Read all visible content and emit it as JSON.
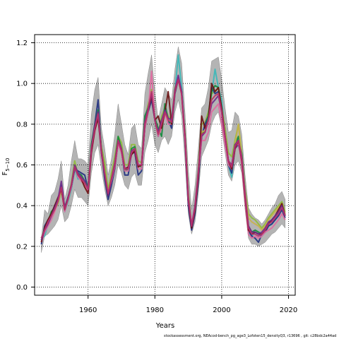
{
  "chart_data": {
    "type": "line",
    "xlabel": "Years",
    "ylabel": "F",
    "ylabel_sub": "5−10",
    "xlim": [
      1944,
      2022
    ],
    "ylim": [
      -0.04,
      1.24
    ],
    "x_ticks": [
      1960,
      1980,
      2000,
      2020
    ],
    "y_ticks": [
      0.0,
      0.2,
      0.4,
      0.6,
      0.8,
      1.0,
      1.2
    ],
    "grid": true,
    "grid_style": "dotted",
    "x": [
      1946,
      1947,
      1948,
      1949,
      1950,
      1951,
      1952,
      1953,
      1954,
      1955,
      1956,
      1957,
      1958,
      1959,
      1960,
      1961,
      1962,
      1963,
      1964,
      1965,
      1966,
      1967,
      1968,
      1969,
      1970,
      1971,
      1972,
      1973,
      1974,
      1975,
      1976,
      1977,
      1978,
      1979,
      1980,
      1981,
      1982,
      1983,
      1984,
      1985,
      1986,
      1987,
      1988,
      1989,
      1990,
      1991,
      1992,
      1993,
      1994,
      1995,
      1996,
      1997,
      1998,
      1999,
      2000,
      2001,
      2002,
      2003,
      2004,
      2005,
      2006,
      2007,
      2008,
      2009,
      2010,
      2011,
      2012,
      2013,
      2014,
      2015,
      2016,
      2017,
      2018,
      2019
    ],
    "band": {
      "color": "#b4b4b4",
      "upper": [
        0.24,
        0.38,
        0.36,
        0.45,
        0.47,
        0.53,
        0.62,
        0.43,
        0.5,
        0.62,
        0.72,
        0.63,
        0.63,
        0.62,
        0.6,
        0.85,
        0.97,
        1.03,
        0.78,
        0.68,
        0.55,
        0.63,
        0.75,
        0.9,
        0.8,
        0.7,
        0.65,
        0.78,
        0.8,
        0.7,
        0.68,
        0.95,
        1.05,
        1.14,
        0.96,
        0.82,
        0.9,
        0.98,
        0.95,
        0.92,
        1.07,
        1.18,
        1.1,
        0.86,
        0.58,
        0.38,
        0.5,
        0.68,
        0.88,
        0.9,
        0.98,
        1.11,
        1.12,
        1.13,
        1.02,
        0.88,
        0.76,
        0.77,
        0.86,
        0.84,
        0.75,
        0.55,
        0.39,
        0.36,
        0.34,
        0.33,
        0.31,
        0.33,
        0.36,
        0.39,
        0.41,
        0.45,
        0.47,
        0.43
      ],
      "lower": [
        0.17,
        0.25,
        0.26,
        0.28,
        0.3,
        0.33,
        0.4,
        0.32,
        0.34,
        0.4,
        0.48,
        0.44,
        0.44,
        0.42,
        0.4,
        0.56,
        0.66,
        0.7,
        0.58,
        0.48,
        0.4,
        0.44,
        0.5,
        0.6,
        0.56,
        0.5,
        0.48,
        0.54,
        0.56,
        0.5,
        0.5,
        0.66,
        0.72,
        0.8,
        0.7,
        0.66,
        0.72,
        0.74,
        0.7,
        0.74,
        0.86,
        0.92,
        0.84,
        0.62,
        0.36,
        0.26,
        0.32,
        0.46,
        0.64,
        0.68,
        0.72,
        0.8,
        0.84,
        0.86,
        0.78,
        0.66,
        0.55,
        0.52,
        0.6,
        0.62,
        0.56,
        0.38,
        0.24,
        0.21,
        0.21,
        0.2,
        0.21,
        0.22,
        0.24,
        0.26,
        0.27,
        0.29,
        0.31,
        0.29
      ]
    },
    "series": [
      {
        "color": "#3ab8b8",
        "values": [
          0.24,
          0.25,
          0.31,
          0.34,
          0.38,
          0.42,
          0.5,
          0.37,
          0.42,
          0.48,
          0.58,
          0.53,
          0.54,
          0.52,
          0.49,
          0.68,
          0.78,
          0.84,
          0.67,
          0.55,
          0.45,
          0.53,
          0.6,
          0.73,
          0.67,
          0.58,
          0.57,
          0.66,
          0.68,
          0.6,
          0.6,
          0.8,
          0.88,
          0.95,
          0.84,
          0.74,
          0.8,
          0.86,
          0.82,
          0.84,
          0.96,
          1.14,
          0.98,
          0.75,
          0.45,
          0.3,
          0.4,
          0.56,
          0.74,
          0.77,
          0.84,
          0.95,
          1.07,
          0.98,
          0.92,
          0.75,
          0.6,
          0.54,
          0.7,
          0.73,
          0.64,
          0.46,
          0.27,
          0.25,
          0.27,
          0.26,
          0.25,
          0.27,
          0.3,
          0.31,
          0.33,
          0.36,
          0.39,
          0.35
        ]
      },
      {
        "color": "#8fbc3a",
        "values": [
          0.23,
          0.29,
          0.31,
          0.36,
          0.38,
          0.41,
          0.47,
          0.4,
          0.43,
          0.51,
          0.62,
          0.55,
          0.53,
          0.51,
          0.49,
          0.69,
          0.8,
          0.86,
          0.69,
          0.61,
          0.48,
          0.56,
          0.64,
          0.74,
          0.71,
          0.6,
          0.6,
          0.7,
          0.7,
          0.62,
          0.61,
          0.82,
          0.9,
          0.97,
          0.83,
          0.76,
          0.84,
          0.88,
          0.84,
          0.82,
          0.98,
          1.02,
          0.95,
          0.76,
          0.46,
          0.3,
          0.4,
          0.58,
          0.8,
          0.81,
          0.86,
          0.95,
          0.96,
          0.98,
          0.88,
          0.78,
          0.66,
          0.64,
          0.72,
          0.8,
          0.66,
          0.48,
          0.36,
          0.34,
          0.33,
          0.31,
          0.29,
          0.31,
          0.34,
          0.36,
          0.38,
          0.4,
          0.42,
          0.37
        ]
      },
      {
        "color": "#1f2f80",
        "values": [
          0.21,
          0.3,
          0.33,
          0.36,
          0.4,
          0.43,
          0.5,
          0.38,
          0.44,
          0.49,
          0.58,
          0.57,
          0.56,
          0.55,
          0.48,
          0.7,
          0.8,
          0.92,
          0.67,
          0.53,
          0.43,
          0.5,
          0.58,
          0.71,
          0.67,
          0.55,
          0.55,
          0.66,
          0.66,
          0.55,
          0.57,
          0.78,
          0.86,
          0.92,
          0.82,
          0.74,
          0.8,
          0.86,
          0.82,
          0.78,
          0.95,
          1.02,
          0.96,
          0.72,
          0.4,
          0.28,
          0.36,
          0.52,
          0.74,
          0.8,
          0.84,
          0.98,
          0.95,
          0.96,
          0.86,
          0.72,
          0.6,
          0.56,
          0.68,
          0.7,
          0.63,
          0.45,
          0.28,
          0.25,
          0.24,
          0.22,
          0.26,
          0.27,
          0.3,
          0.31,
          0.33,
          0.35,
          0.38,
          0.34
        ]
      },
      {
        "color": "#0f8a3a",
        "values": [
          0.24,
          0.28,
          0.32,
          0.37,
          0.39,
          0.43,
          0.49,
          0.39,
          0.44,
          0.5,
          0.6,
          0.56,
          0.55,
          0.52,
          0.49,
          0.7,
          0.79,
          0.87,
          0.68,
          0.56,
          0.46,
          0.54,
          0.61,
          0.74,
          0.68,
          0.57,
          0.58,
          0.68,
          0.69,
          0.6,
          0.59,
          0.84,
          0.88,
          0.95,
          0.83,
          0.78,
          0.74,
          0.9,
          0.82,
          0.8,
          0.97,
          1.02,
          0.96,
          0.74,
          0.44,
          0.3,
          0.38,
          0.56,
          0.76,
          0.76,
          0.84,
          0.96,
          0.99,
          0.98,
          0.87,
          0.74,
          0.62,
          0.58,
          0.7,
          0.74,
          0.66,
          0.46,
          0.3,
          0.27,
          0.28,
          0.27,
          0.26,
          0.28,
          0.31,
          0.33,
          0.35,
          0.37,
          0.4,
          0.35
        ]
      },
      {
        "color": "#e06aa0",
        "values": [
          0.22,
          0.27,
          0.3,
          0.33,
          0.37,
          0.42,
          0.48,
          0.37,
          0.43,
          0.49,
          0.59,
          0.54,
          0.52,
          0.5,
          0.47,
          0.66,
          0.76,
          0.84,
          0.65,
          0.56,
          0.46,
          0.52,
          0.59,
          0.7,
          0.66,
          0.57,
          0.57,
          0.66,
          0.67,
          0.58,
          0.58,
          0.78,
          0.86,
          1.06,
          0.82,
          0.74,
          0.78,
          0.85,
          0.8,
          0.8,
          0.96,
          1.04,
          0.94,
          0.72,
          0.42,
          0.31,
          0.4,
          0.56,
          0.72,
          0.72,
          0.76,
          0.86,
          0.88,
          0.9,
          0.8,
          0.7,
          0.6,
          0.58,
          0.68,
          0.71,
          0.6,
          0.42,
          0.26,
          0.24,
          0.25,
          0.24,
          0.25,
          0.27,
          0.28,
          0.29,
          0.31,
          0.33,
          0.36,
          0.33
        ]
      },
      {
        "color": "#c9b14a",
        "values": [
          0.23,
          0.28,
          0.32,
          0.35,
          0.38,
          0.42,
          0.48,
          0.38,
          0.43,
          0.5,
          0.6,
          0.55,
          0.54,
          0.51,
          0.48,
          0.68,
          0.78,
          0.85,
          0.67,
          0.56,
          0.46,
          0.54,
          0.61,
          0.72,
          0.68,
          0.58,
          0.58,
          0.67,
          0.68,
          0.6,
          0.6,
          0.8,
          0.87,
          0.95,
          0.82,
          0.75,
          0.8,
          0.86,
          0.82,
          0.81,
          0.96,
          1.02,
          0.95,
          0.74,
          0.44,
          0.3,
          0.39,
          0.56,
          0.76,
          0.77,
          0.82,
          0.92,
          0.94,
          0.95,
          0.86,
          0.74,
          0.62,
          0.6,
          0.7,
          0.8,
          0.64,
          0.46,
          0.34,
          0.32,
          0.31,
          0.3,
          0.28,
          0.3,
          0.33,
          0.35,
          0.37,
          0.39,
          0.41,
          0.36
        ]
      },
      {
        "color": "#6a0f0f",
        "values": [
          0.22,
          0.29,
          0.33,
          0.36,
          0.4,
          0.44,
          0.48,
          0.38,
          0.44,
          0.5,
          0.59,
          0.55,
          0.53,
          0.49,
          0.46,
          0.66,
          0.77,
          0.83,
          0.66,
          0.55,
          0.45,
          0.53,
          0.6,
          0.72,
          0.67,
          0.58,
          0.59,
          0.65,
          0.67,
          0.59,
          0.6,
          0.8,
          0.87,
          0.94,
          0.82,
          0.84,
          0.78,
          0.86,
          0.96,
          0.8,
          0.96,
          1.02,
          0.95,
          0.74,
          0.43,
          0.29,
          0.38,
          0.54,
          0.84,
          0.78,
          0.82,
          1.0,
          0.96,
          0.98,
          0.88,
          0.74,
          0.62,
          0.58,
          0.68,
          0.72,
          0.62,
          0.44,
          0.28,
          0.26,
          0.27,
          0.26,
          0.26,
          0.28,
          0.31,
          0.33,
          0.35,
          0.38,
          0.41,
          0.35
        ]
      },
      {
        "color": "#6d2a8a",
        "values": [
          0.23,
          0.28,
          0.31,
          0.35,
          0.39,
          0.43,
          0.52,
          0.39,
          0.44,
          0.5,
          0.6,
          0.56,
          0.54,
          0.52,
          0.48,
          0.68,
          0.79,
          0.86,
          0.66,
          0.55,
          0.45,
          0.53,
          0.61,
          0.72,
          0.68,
          0.58,
          0.58,
          0.67,
          0.68,
          0.6,
          0.6,
          0.81,
          0.88,
          0.95,
          0.82,
          0.76,
          0.82,
          0.87,
          0.83,
          0.82,
          0.97,
          1.04,
          0.96,
          0.74,
          0.44,
          0.3,
          0.4,
          0.57,
          0.74,
          0.76,
          0.82,
          0.9,
          0.92,
          0.94,
          0.86,
          0.74,
          0.62,
          0.6,
          0.7,
          0.72,
          0.64,
          0.46,
          0.3,
          0.27,
          0.27,
          0.26,
          0.27,
          0.29,
          0.32,
          0.33,
          0.35,
          0.37,
          0.4,
          0.35
        ]
      },
      {
        "color": "#b8306e",
        "values": [
          0.24,
          0.28,
          0.32,
          0.35,
          0.38,
          0.42,
          0.49,
          0.38,
          0.43,
          0.5,
          0.59,
          0.55,
          0.53,
          0.51,
          0.48,
          0.68,
          0.78,
          0.85,
          0.67,
          0.56,
          0.46,
          0.53,
          0.6,
          0.72,
          0.67,
          0.58,
          0.58,
          0.66,
          0.68,
          0.6,
          0.6,
          0.8,
          0.87,
          0.96,
          0.82,
          0.75,
          0.8,
          0.86,
          0.82,
          0.81,
          0.96,
          1.02,
          0.95,
          0.74,
          0.44,
          0.3,
          0.39,
          0.56,
          0.75,
          0.76,
          0.82,
          0.92,
          0.94,
          0.95,
          0.86,
          0.74,
          0.62,
          0.59,
          0.69,
          0.72,
          0.63,
          0.45,
          0.29,
          0.26,
          0.26,
          0.25,
          0.26,
          0.28,
          0.31,
          0.32,
          0.34,
          0.36,
          0.39,
          0.35
        ]
      }
    ]
  },
  "footer": "stockassessment.org,  NEAcod-bench_pg_age3_Lofoten15_densityQ3,  r13696 ,  git: c28bdc2a44ad"
}
